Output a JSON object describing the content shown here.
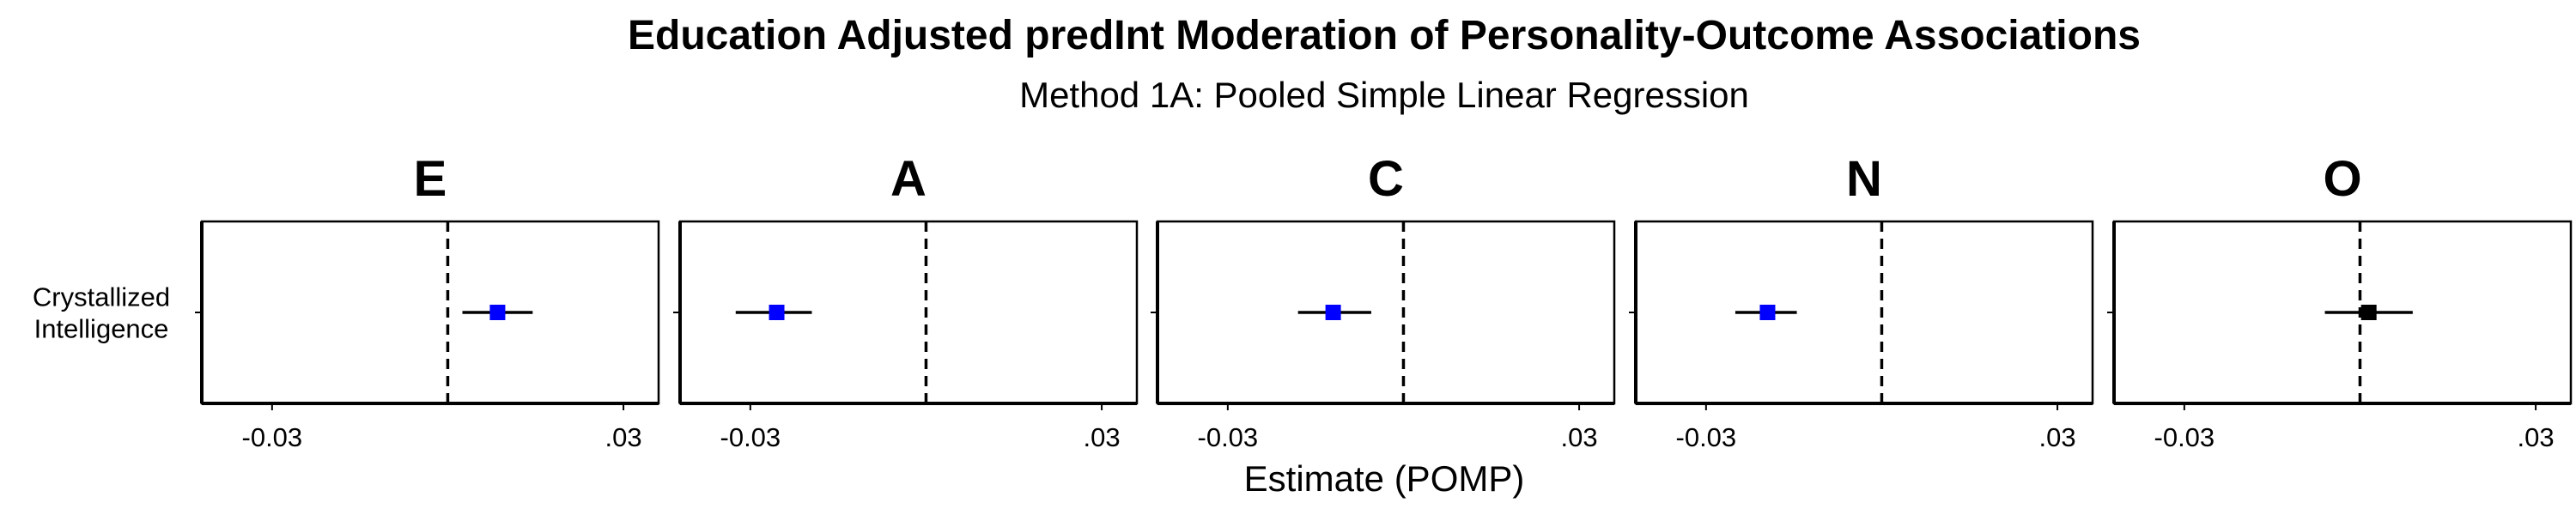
{
  "chart_data": {
    "type": "scatter",
    "title": "Education Adjusted predInt Moderation of Personality-Outcome Associations",
    "subtitle": "Method 1A: Pooled Simple Linear Regression",
    "xlabel": "Estimate (POMP)",
    "ylabel": "",
    "y_categories": [
      "Crystallized\nIntelligence"
    ],
    "xlim": [
      -0.042,
      0.036
    ],
    "xticks": [
      -0.03,
      0.03
    ],
    "xtick_labels": [
      "-0.03",
      ".03"
    ],
    "reference_line": 0,
    "grid": false,
    "legend": "none",
    "colors": {
      "significant": "#0000ff",
      "nonsignificant": "#000000"
    },
    "panels": [
      {
        "label": "E",
        "points": [
          {
            "category": "Crystallized\nIntelligence",
            "estimate": 0.0085,
            "ci": [
              0.0025,
              0.0145
            ],
            "significant": true
          }
        ]
      },
      {
        "label": "A",
        "points": [
          {
            "category": "Crystallized\nIntelligence",
            "estimate": -0.0255,
            "ci": [
              -0.0325,
              -0.0195
            ],
            "significant": true
          }
        ]
      },
      {
        "label": "C",
        "points": [
          {
            "category": "Crystallized\nIntelligence",
            "estimate": -0.012,
            "ci": [
              -0.018,
              -0.0055
            ],
            "significant": true
          }
        ]
      },
      {
        "label": "N",
        "points": [
          {
            "category": "Crystallized\nIntelligence",
            "estimate": -0.0195,
            "ci": [
              -0.025,
              -0.0145
            ],
            "significant": true
          }
        ]
      },
      {
        "label": "O",
        "points": [
          {
            "category": "Crystallized\nIntelligence",
            "estimate": 0.0015,
            "ci": [
              -0.006,
              0.009
            ],
            "significant": false
          }
        ]
      }
    ]
  }
}
